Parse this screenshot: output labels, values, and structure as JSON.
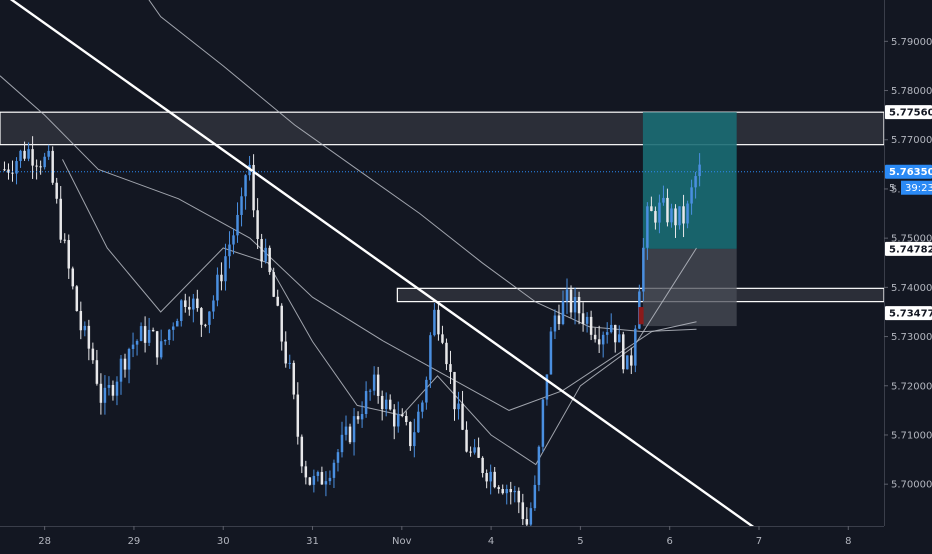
{
  "colors": {
    "background": "#131722",
    "axis_text": "#b2b5be",
    "candle_up": "#4a8fe0",
    "candle_down": "#e8e8ea",
    "trendline": "#ffffff",
    "moving_average": "#b9bcc4",
    "current_price": "#2b8af5",
    "target_zone": "#1a6b73",
    "stop_zone": "#4a4d57",
    "zone": "#30333c",
    "stop_marker": "#8b1a1a"
  },
  "chart_data": {
    "type": "candlestick",
    "title": "",
    "xlabel": "",
    "ylabel": "",
    "ylim": [
      5.6915,
      5.7984
    ],
    "xlim": [
      27.5,
      37.4
    ],
    "grid": false,
    "legend": "none",
    "x_ticks": [
      {
        "x": 28,
        "label": "28"
      },
      {
        "x": 29,
        "label": "29"
      },
      {
        "x": 30,
        "label": "30"
      },
      {
        "x": 31,
        "label": "31"
      },
      {
        "x": 32,
        "label": "Nov"
      },
      {
        "x": 33,
        "label": "4"
      },
      {
        "x": 34,
        "label": "5"
      },
      {
        "x": 35,
        "label": "6"
      },
      {
        "x": 36,
        "label": "7"
      },
      {
        "x": 37,
        "label": "8"
      }
    ],
    "y_ticks": [
      5.7,
      5.71,
      5.72,
      5.73,
      5.74,
      5.75,
      5.76,
      5.77,
      5.78,
      5.79
    ],
    "y_tick_labels": [
      "5.70000",
      "5.71000",
      "5.72000",
      "5.73000",
      "5.74000",
      "5.75000",
      "5.76000",
      "5.77000",
      "5.78000",
      "5.79000"
    ],
    "price_labels": [
      {
        "value": 5.7756,
        "label": "5.77560",
        "style": "outline"
      },
      {
        "value": 5.7635,
        "label": "5.76350",
        "style": "current"
      },
      {
        "value": 5.74782,
        "label": "5.74782",
        "style": "outline"
      },
      {
        "value": 5.73477,
        "label": "5.73477",
        "style": "outline"
      }
    ],
    "countdown_label": "39:23",
    "countdown_partial_label": "5",
    "current_price": 5.7635,
    "price_path": [
      [
        27.55,
        5.764
      ],
      [
        27.8,
        5.768
      ],
      [
        28.05,
        5.765
      ],
      [
        28.25,
        5.745
      ],
      [
        28.4,
        5.732
      ],
      [
        28.55,
        5.725
      ],
      [
        28.65,
        5.716
      ],
      [
        28.8,
        5.722
      ],
      [
        28.95,
        5.728
      ],
      [
        29.15,
        5.731
      ],
      [
        29.3,
        5.727
      ],
      [
        29.45,
        5.734
      ],
      [
        29.6,
        5.739
      ],
      [
        29.75,
        5.733
      ],
      [
        29.9,
        5.738
      ],
      [
        30.05,
        5.748
      ],
      [
        30.2,
        5.755
      ],
      [
        30.28,
        5.768
      ],
      [
        30.35,
        5.752
      ],
      [
        30.5,
        5.744
      ],
      [
        30.65,
        5.73
      ],
      [
        30.75,
        5.722
      ],
      [
        30.85,
        5.708
      ],
      [
        30.95,
        5.701
      ],
      [
        31.05,
        5.7
      ],
      [
        31.2,
        5.704
      ],
      [
        31.4,
        5.71
      ],
      [
        31.55,
        5.716
      ],
      [
        31.7,
        5.72
      ],
      [
        31.85,
        5.715
      ],
      [
        32.0,
        5.712
      ],
      [
        32.1,
        5.709
      ],
      [
        32.25,
        5.718
      ],
      [
        32.35,
        5.735
      ],
      [
        32.45,
        5.732
      ],
      [
        32.6,
        5.716
      ],
      [
        32.75,
        5.706
      ],
      [
        32.95,
        5.703
      ],
      [
        33.15,
        5.7
      ],
      [
        33.3,
        5.697
      ],
      [
        33.4,
        5.692
      ],
      [
        33.5,
        5.699
      ],
      [
        33.6,
        5.72
      ],
      [
        33.7,
        5.734
      ],
      [
        33.85,
        5.737
      ],
      [
        34.0,
        5.735
      ],
      [
        34.2,
        5.731
      ],
      [
        34.35,
        5.733
      ],
      [
        34.48,
        5.726
      ],
      [
        34.55,
        5.722
      ],
      [
        34.65,
        5.74
      ],
      [
        34.75,
        5.754
      ],
      [
        34.9,
        5.756
      ],
      [
        35.05,
        5.754
      ],
      [
        35.18,
        5.754
      ],
      [
        35.28,
        5.762
      ],
      [
        35.35,
        5.764
      ]
    ],
    "candle_spacing": 0.045,
    "trendline": {
      "start": [
        27.2,
        5.804
      ],
      "end": [
        36.0,
        5.6905
      ]
    },
    "moving_averages": [
      {
        "points": [
          [
            27.5,
            5.783
          ],
          [
            28.0,
            5.775
          ],
          [
            28.6,
            5.764
          ],
          [
            29.5,
            5.758
          ],
          [
            30.3,
            5.75
          ],
          [
            31.0,
            5.738
          ],
          [
            31.8,
            5.729
          ],
          [
            32.5,
            5.722
          ],
          [
            33.2,
            5.715
          ],
          [
            33.8,
            5.719
          ],
          [
            34.3,
            5.725
          ],
          [
            34.8,
            5.731
          ],
          [
            35.3,
            5.733
          ]
        ]
      },
      {
        "points": [
          [
            28.2,
            5.766
          ],
          [
            28.7,
            5.748
          ],
          [
            29.3,
            5.735
          ],
          [
            30.0,
            5.748
          ],
          [
            30.5,
            5.745
          ],
          [
            31.0,
            5.729
          ],
          [
            31.5,
            5.716
          ],
          [
            32.0,
            5.714
          ],
          [
            32.4,
            5.722
          ],
          [
            33.0,
            5.71
          ],
          [
            33.5,
            5.704
          ],
          [
            34.0,
            5.72
          ],
          [
            34.6,
            5.728
          ],
          [
            35.3,
            5.748
          ]
        ]
      },
      {
        "points": [
          [
            28.8,
            5.808
          ],
          [
            29.3,
            5.795
          ],
          [
            30.0,
            5.785
          ],
          [
            30.8,
            5.773
          ],
          [
            31.5,
            5.764
          ],
          [
            32.2,
            5.755
          ],
          [
            32.9,
            5.745
          ],
          [
            33.5,
            5.737
          ],
          [
            34.1,
            5.732
          ],
          [
            34.7,
            5.731
          ],
          [
            35.3,
            5.7315
          ]
        ]
      }
    ],
    "zones": [
      {
        "kind": "resistance-zone",
        "x1": 27.5,
        "x2": 37.4,
        "y1": 5.769,
        "y2": 5.7756
      },
      {
        "kind": "support-zone",
        "x1": 31.95,
        "x2": 37.4,
        "y1": 5.7371,
        "y2": 5.7398
      }
    ],
    "position": {
      "x1": 34.7,
      "x2": 35.75,
      "target": 5.7756,
      "entry": 5.74782,
      "stop": 5.73477
    }
  }
}
